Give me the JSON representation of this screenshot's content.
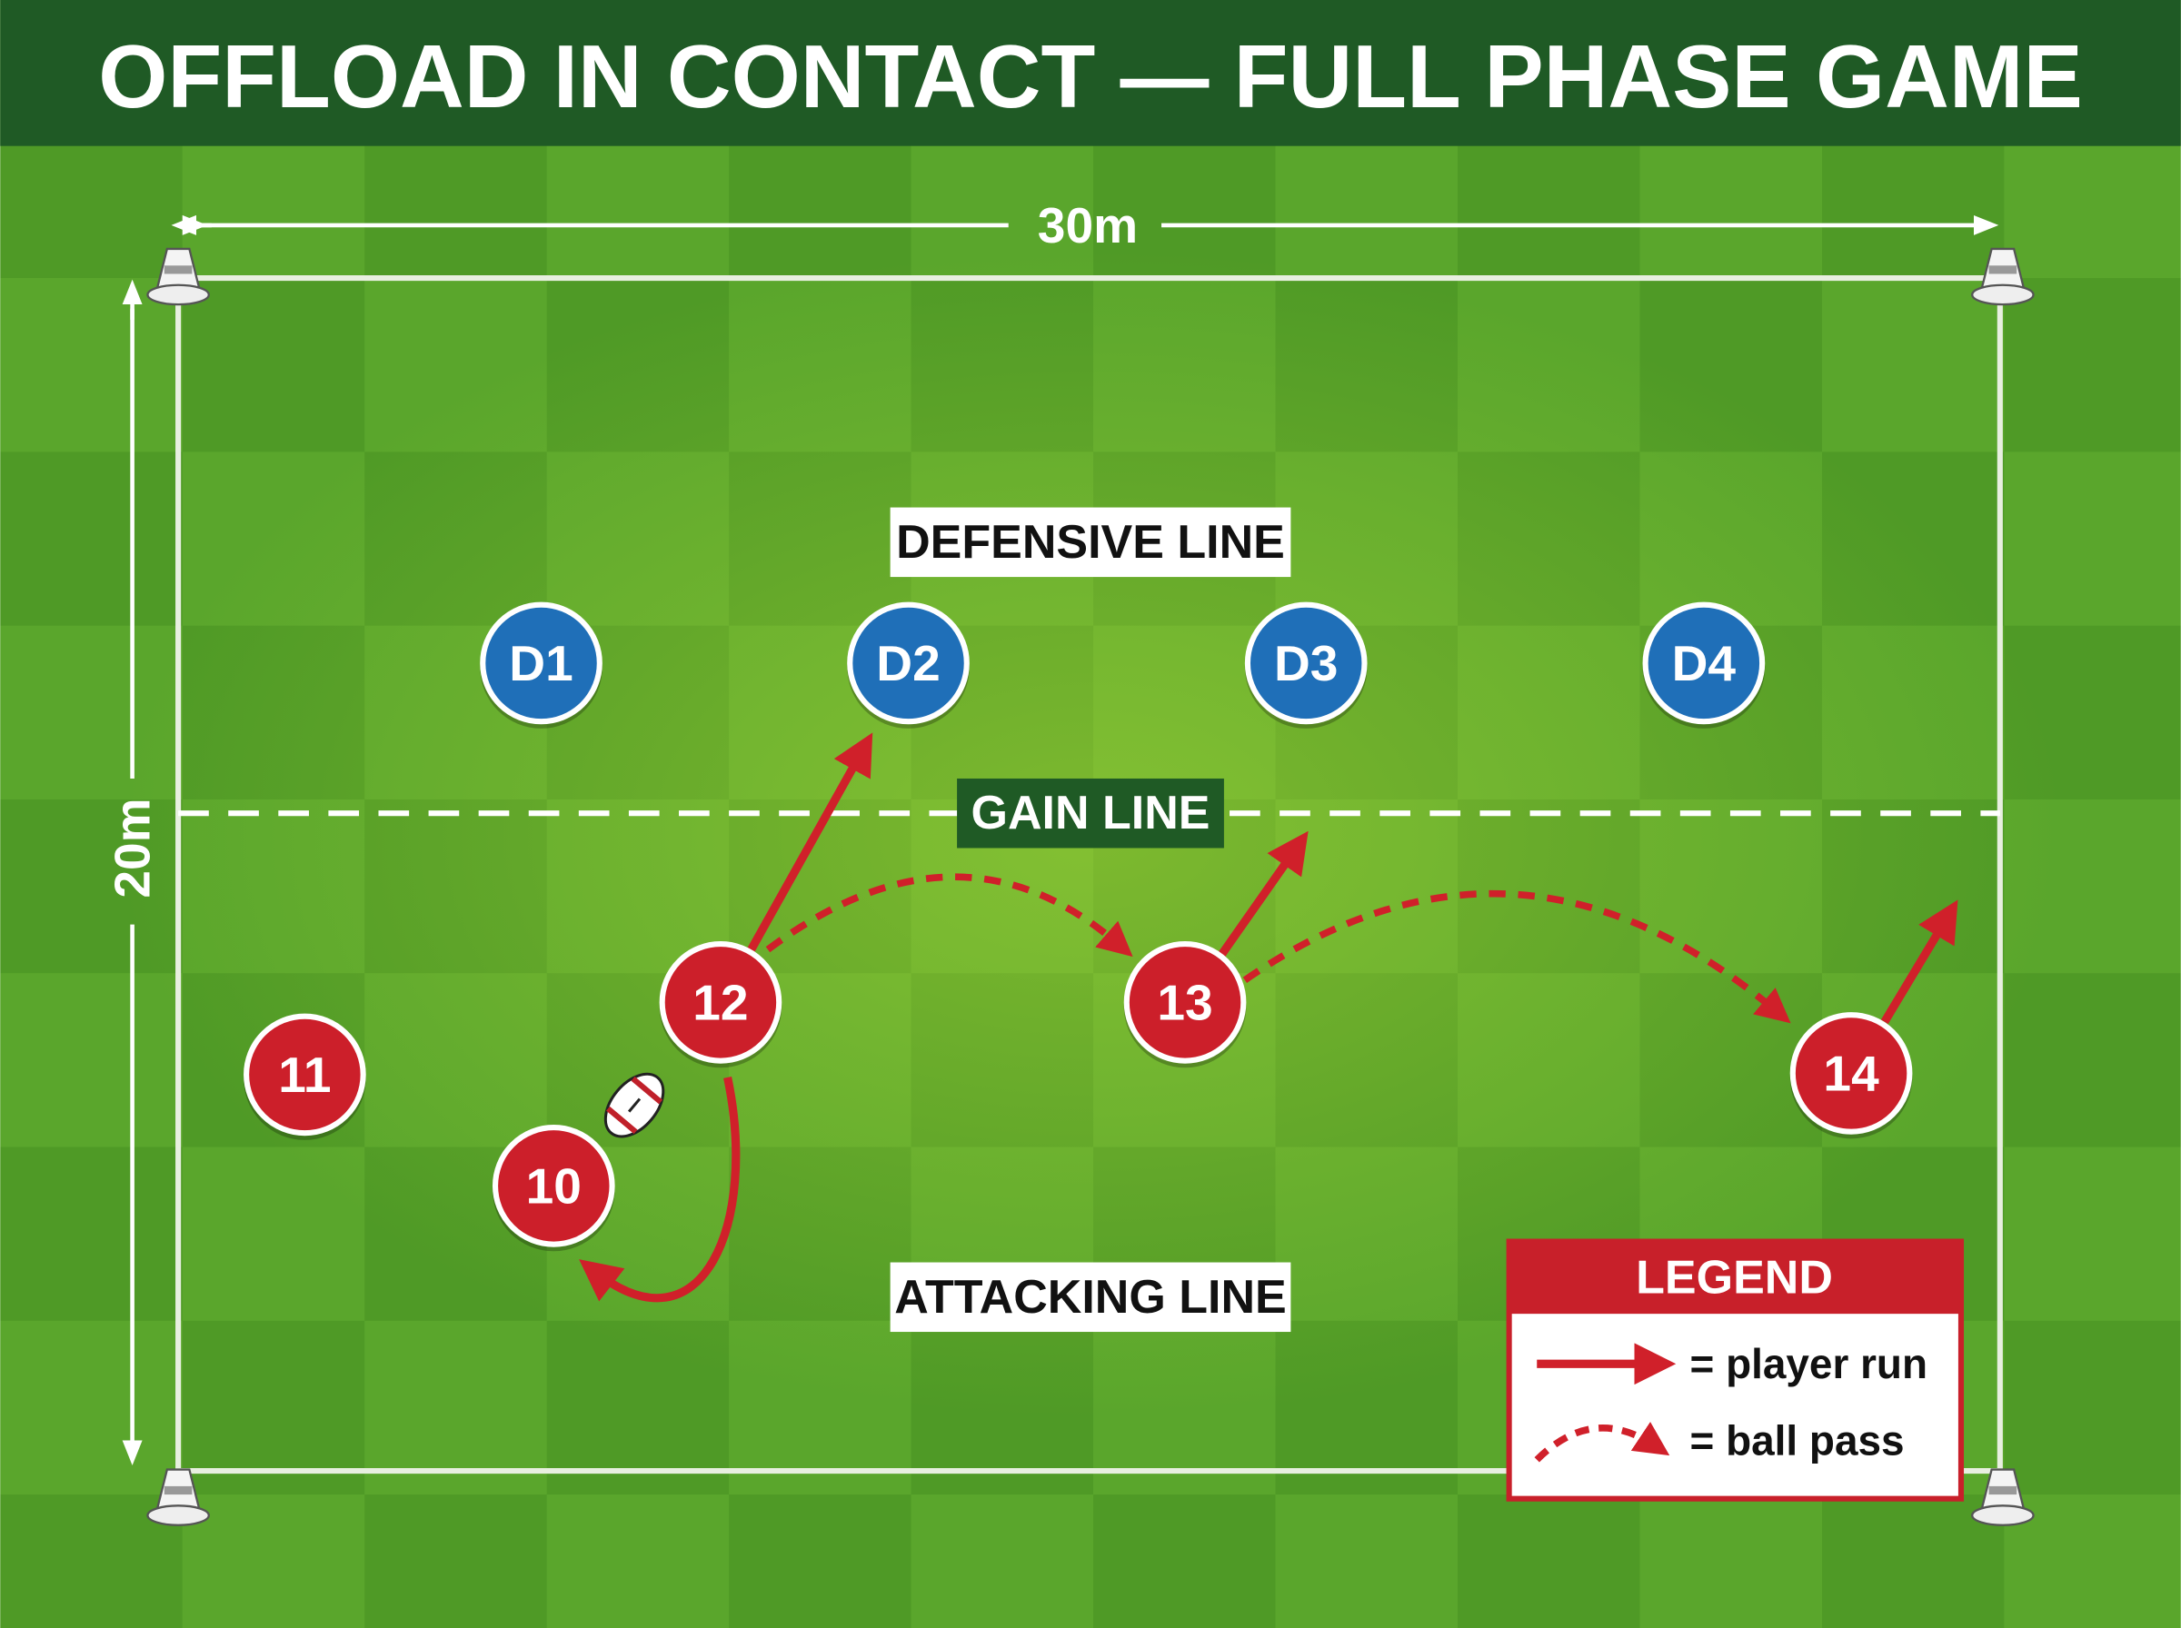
{
  "header": {
    "title": "OFFLOAD IN CONTACT — FULL PHASE GAME"
  },
  "field": {
    "width_label": "30m",
    "height_label": "20m"
  },
  "lines": {
    "defensive": "DEFENSIVE LINE",
    "gain": "GAIN LINE",
    "attacking": "ATTACKING LINE"
  },
  "defenders": [
    "D1",
    "D2",
    "D3",
    "D4"
  ],
  "attackers": [
    "11",
    "12",
    "10",
    "13",
    "14"
  ],
  "legend": {
    "title": "LEGEND",
    "items": [
      "= player run",
      "= ball pass"
    ]
  }
}
